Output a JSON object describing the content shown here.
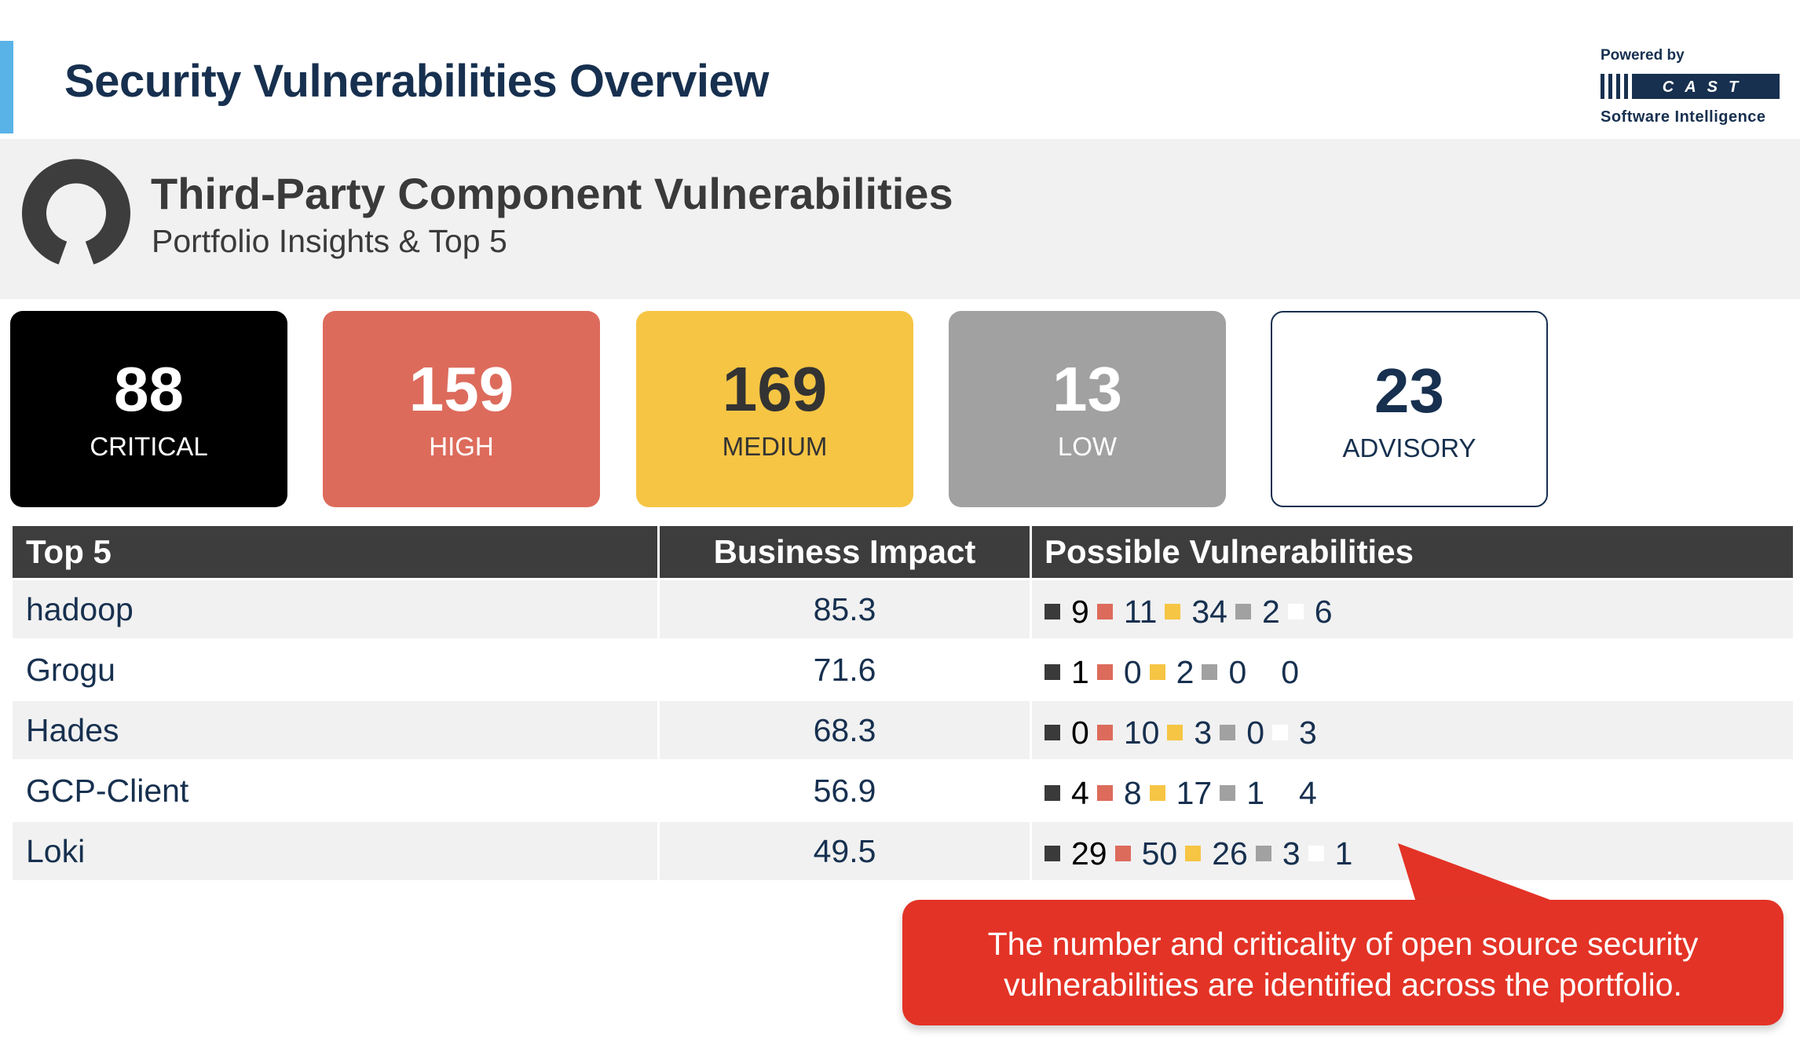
{
  "header": {
    "title": "Security Vulnerabilities Overview",
    "accent_color": "#5ab3e6"
  },
  "brand": {
    "powered_by": "Powered by",
    "name": "CAST",
    "tagline": "Software Intelligence"
  },
  "section": {
    "icon": "open-source-icon",
    "title": "Third-Party Component Vulnerabilities",
    "subtitle": "Portfolio Insights & Top 5"
  },
  "severity_cards": [
    {
      "count": "88",
      "label": "CRITICAL",
      "color": "#000000"
    },
    {
      "count": "159",
      "label": "HIGH",
      "color": "#dd6b5c"
    },
    {
      "count": "169",
      "label": "MEDIUM",
      "color": "#f6c544"
    },
    {
      "count": "13",
      "label": "LOW",
      "color": "#a1a1a1"
    },
    {
      "count": "23",
      "label": "ADVISORY",
      "color": "#ffffff"
    }
  ],
  "table": {
    "headers": {
      "name": "Top 5",
      "impact": "Business Impact",
      "vulns": "Possible Vulnerabilities"
    },
    "rows": [
      {
        "name": "hadoop",
        "impact": "85.3",
        "critical": "9",
        "high": "11",
        "medium": "34",
        "low": "2",
        "advisory": "6"
      },
      {
        "name": "Grogu",
        "impact": "71.6",
        "critical": "1",
        "high": "0",
        "medium": "2",
        "low": "0",
        "advisory": "0"
      },
      {
        "name": "Hades",
        "impact": "68.3",
        "critical": "0",
        "high": "10",
        "medium": "3",
        "low": "0",
        "advisory": "3"
      },
      {
        "name": "GCP-Client",
        "impact": "56.9",
        "critical": "4",
        "high": "8",
        "medium": "17",
        "low": "1",
        "advisory": "4"
      },
      {
        "name": "Loki",
        "impact": "49.5",
        "critical": "29",
        "high": "50",
        "medium": "26",
        "low": "3",
        "advisory": "1"
      }
    ]
  },
  "callout": {
    "line1": "The number and criticality of open source security",
    "line2": "vulnerabilities are identified across the portfolio.",
    "color": "#e33326"
  }
}
